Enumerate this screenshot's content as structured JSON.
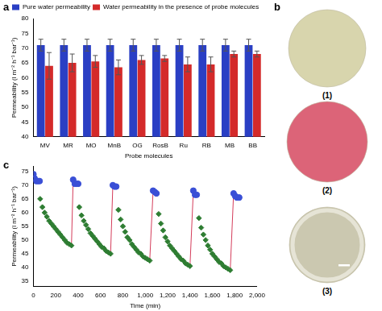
{
  "panel_labels": [
    "a",
    "b",
    "c"
  ],
  "chart_data": [
    {
      "type": "bar",
      "categories": [
        "MV",
        "MR",
        "MO",
        "MnB",
        "OG",
        "RosB",
        "Ru",
        "RB",
        "MB",
        "BB"
      ],
      "series": [
        {
          "name": "Pure water permeability",
          "color": "#2a3fc4",
          "values": [
            71,
            71,
            71,
            71,
            71,
            71,
            71,
            71,
            71,
            71
          ],
          "errors": [
            2,
            2,
            2,
            2,
            2,
            2,
            2,
            2,
            2,
            2
          ]
        },
        {
          "name": "Water permeability in the presence of probe molecules",
          "color": "#d42a2a",
          "values": [
            64,
            65,
            65.5,
            63.5,
            66,
            66.5,
            64.5,
            64.5,
            68,
            68
          ],
          "errors": [
            4.5,
            3,
            2,
            2.5,
            1.5,
            1,
            2.5,
            2.5,
            1,
            1
          ]
        }
      ],
      "x_label": "Probe molecules",
      "y_label": "Permeability (l m⁻² h⁻¹ bar⁻¹)",
      "ylim": [
        40,
        80
      ],
      "yticks": [
        40,
        45,
        50,
        55,
        60,
        65,
        70,
        75,
        80
      ],
      "grid": false,
      "legend": "top-left"
    },
    {
      "type": "scatter",
      "series": [
        {
          "color": "#3a4fd6",
          "marker": "circle",
          "x": [
            0,
            10,
            25,
            40,
            55,
            null,
            355,
            370,
            385,
            400,
            null,
            710,
            725,
            740,
            null,
            1070,
            1085,
            1100,
            null,
            1430,
            1445,
            1460,
            null,
            1790,
            1805,
            1820,
            1840
          ],
          "values": [
            74,
            72.5,
            71.5,
            71.5,
            71.5,
            null,
            72,
            70.5,
            70.5,
            70.5,
            null,
            70,
            69.5,
            69.5,
            null,
            68,
            67.5,
            67,
            null,
            68,
            66.5,
            66.5,
            null,
            67,
            66,
            65.5,
            65.5
          ]
        },
        {
          "color": "#2e7d32",
          "marker": "diamond",
          "x": [
            60,
            80,
            100,
            120,
            140,
            160,
            180,
            200,
            220,
            240,
            260,
            280,
            300,
            320,
            340,
            null,
            410,
            430,
            450,
            470,
            490,
            510,
            530,
            550,
            570,
            590,
            610,
            630,
            650,
            670,
            690,
            null,
            760,
            780,
            800,
            820,
            840,
            860,
            880,
            900,
            920,
            940,
            960,
            980,
            1000,
            1020,
            1040,
            null,
            1120,
            1140,
            1160,
            1180,
            1200,
            1220,
            1240,
            1260,
            1280,
            1300,
            1320,
            1340,
            1360,
            1380,
            1400,
            null,
            1480,
            1500,
            1520,
            1540,
            1560,
            1580,
            1600,
            1620,
            1640,
            1660,
            1680,
            1700,
            1720,
            1740,
            1760
          ],
          "values": [
            65,
            62,
            60,
            58.5,
            57,
            56,
            55,
            54,
            53,
            52,
            51,
            50,
            49,
            48.5,
            48,
            null,
            62,
            59,
            57,
            55.5,
            54,
            52.5,
            51.5,
            50.5,
            49.5,
            48.5,
            47.5,
            47,
            46,
            45.5,
            45,
            null,
            61,
            57.5,
            55,
            53,
            51,
            50,
            48.5,
            47.5,
            46.5,
            45.5,
            45,
            44,
            43.5,
            43,
            42.5,
            null,
            59.5,
            56,
            53.5,
            51,
            49.5,
            48,
            47,
            46,
            45,
            44,
            43,
            42.5,
            41.5,
            41,
            40.5,
            null,
            58,
            54.5,
            52,
            50,
            48,
            46.5,
            45,
            44,
            43,
            42,
            41.5,
            40.5,
            40,
            39.5,
            39
          ]
        }
      ],
      "x_label": "Time (min)",
      "y_label": "Permeability (l m⁻² h⁻¹ bar⁻¹)",
      "xlim": [
        0,
        2000
      ],
      "xticks": [
        0,
        200,
        400,
        600,
        800,
        {
          "value": 1000,
          "label": "1,000"
        },
        {
          "value": 1200,
          "label": "1,200"
        },
        {
          "value": 1400,
          "label": "1,400"
        },
        {
          "value": 1600,
          "label": "1,600"
        },
        {
          "value": 1800,
          "label": "1,800"
        },
        {
          "value": 2000,
          "label": "2,000"
        }
      ],
      "ylim": [
        33,
        77
      ],
      "yticks": [
        35,
        40,
        45,
        50,
        55,
        60,
        65,
        70,
        75
      ],
      "grid": false
    }
  ],
  "photos": {
    "labels": [
      "(1)",
      "(2)",
      "(3)"
    ],
    "colors": [
      "#d8d5ad",
      "#dc6478",
      "#cbc8b0"
    ]
  }
}
